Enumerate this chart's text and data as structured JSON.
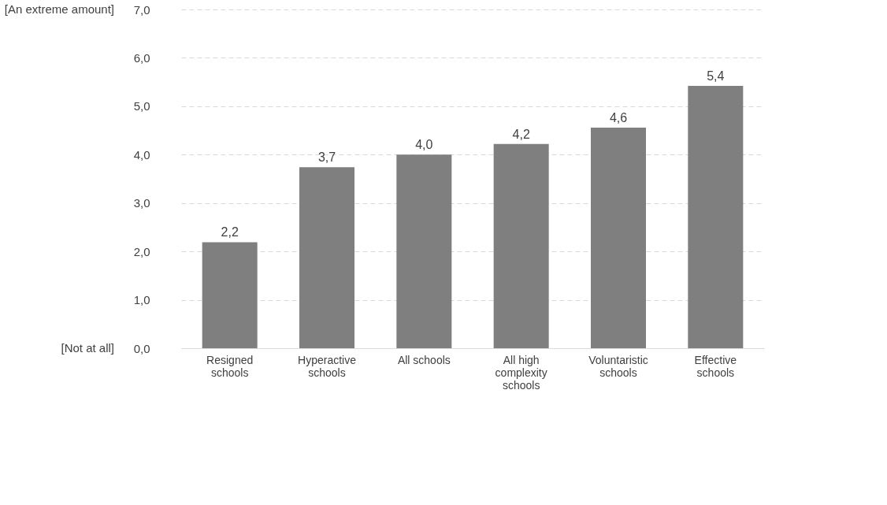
{
  "chart_data": {
    "type": "bar",
    "categories": [
      "Resigned schools",
      "Hyperactive schools",
      "All schools",
      "All high complexity schools",
      "Voluntaristic schools",
      "Effective schools"
    ],
    "values": [
      2.19,
      3.74,
      4.0,
      4.22,
      4.56,
      5.42
    ],
    "value_labels": [
      "2,2",
      "3,7",
      "4,0",
      "4,2",
      "4,6",
      "5,4"
    ],
    "color": "#7f7f7f",
    "ylim": [
      0,
      7
    ],
    "yticks": [
      {
        "value": 0,
        "label": "0,0"
      },
      {
        "value": 1,
        "label": "1,0"
      },
      {
        "value": 2,
        "label": "2,0"
      },
      {
        "value": 3,
        "label": "3,0"
      },
      {
        "value": 4,
        "label": "4,0"
      },
      {
        "value": 5,
        "label": "5,0"
      },
      {
        "value": 6,
        "label": "6,0"
      },
      {
        "value": 7,
        "label": "7,0"
      }
    ],
    "annotations": [
      "[An extreme amount]",
      "[Not at all]"
    ],
    "grid": "y"
  }
}
